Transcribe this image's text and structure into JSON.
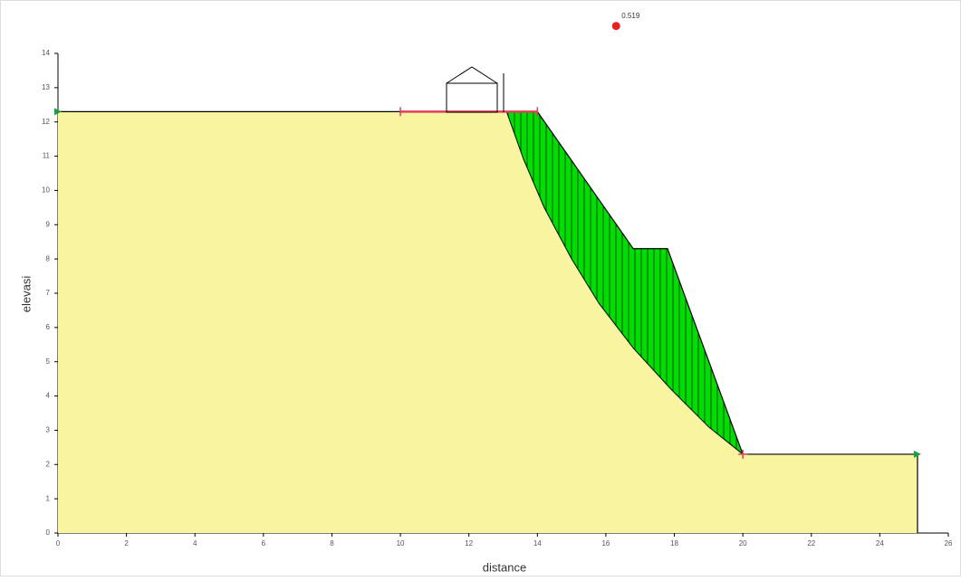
{
  "chart_data": {
    "type": "slope",
    "x_label": "distance",
    "y_label": "elevasi",
    "xlim": [
      0,
      26
    ],
    "ylim": [
      0,
      14
    ],
    "xticks": [
      0,
      2,
      4,
      6,
      8,
      10,
      12,
      14,
      16,
      18,
      20,
      22,
      24,
      26
    ],
    "yticks": [
      0,
      1,
      2,
      3,
      4,
      5,
      6,
      7,
      8,
      9,
      10,
      11,
      12,
      13,
      14
    ],
    "ground": {
      "color": "#f8f4a0",
      "x": [
        0,
        14,
        16.8,
        17.8,
        20,
        25.1,
        25.1
      ],
      "y": [
        12.3,
        12.3,
        8.3,
        8.3,
        2.3,
        2.3,
        0
      ]
    },
    "slip_surface": {
      "color": "#00dd00",
      "x": [
        13.1,
        13.6,
        14.2,
        15,
        15.8,
        16.8,
        17.9,
        19,
        20
      ],
      "y": [
        12.3,
        10.9,
        9.5,
        8.0,
        6.7,
        5.4,
        4.2,
        3.1,
        2.3
      ]
    },
    "entry_range": {
      "x": [
        10,
        14
      ],
      "y": 12.3,
      "color": "#e0405a"
    },
    "critical_center": {
      "x": 16.3,
      "y": 14.8,
      "factor_of_safety": 0.519,
      "color": "#e82020"
    }
  }
}
